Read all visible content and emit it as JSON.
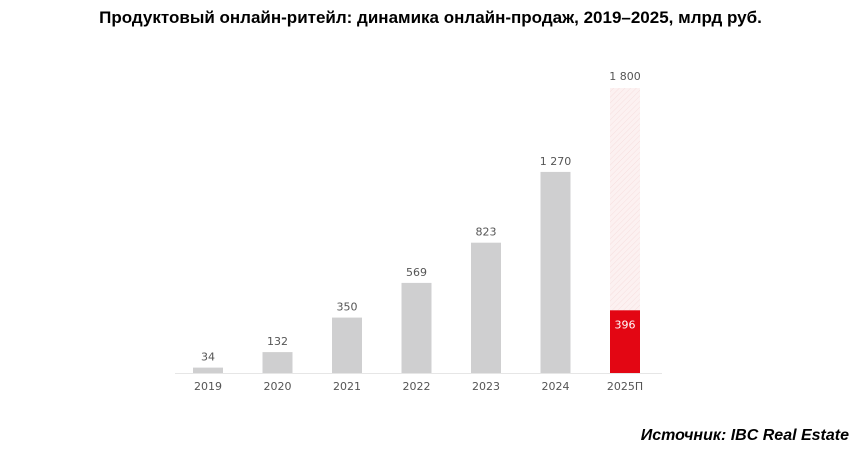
{
  "chart_data": {
    "type": "bar",
    "title": "Продуктовый онлайн-ритейл: динамика онлайн-продаж, 2019–2025, млрд руб.",
    "categories": [
      "2019",
      "2020",
      "2021",
      "2022",
      "2023",
      "2024",
      "2025П"
    ],
    "values": [
      34,
      132,
      350,
      569,
      823,
      1270,
      396
    ],
    "value_labels": [
      "34",
      "132",
      "350",
      "569",
      "823",
      "1 270",
      "396"
    ],
    "forecast": {
      "category": "2025П",
      "value": 1800,
      "label": "1 800"
    },
    "xlabel": "",
    "ylabel": "",
    "ylim": [
      0,
      1800
    ],
    "grid": false,
    "colors": {
      "bar": "#cfcfd0",
      "highlight": "#e30613",
      "forecast": "#fbeeee"
    }
  },
  "source": "Источник: IBC Real Estate"
}
